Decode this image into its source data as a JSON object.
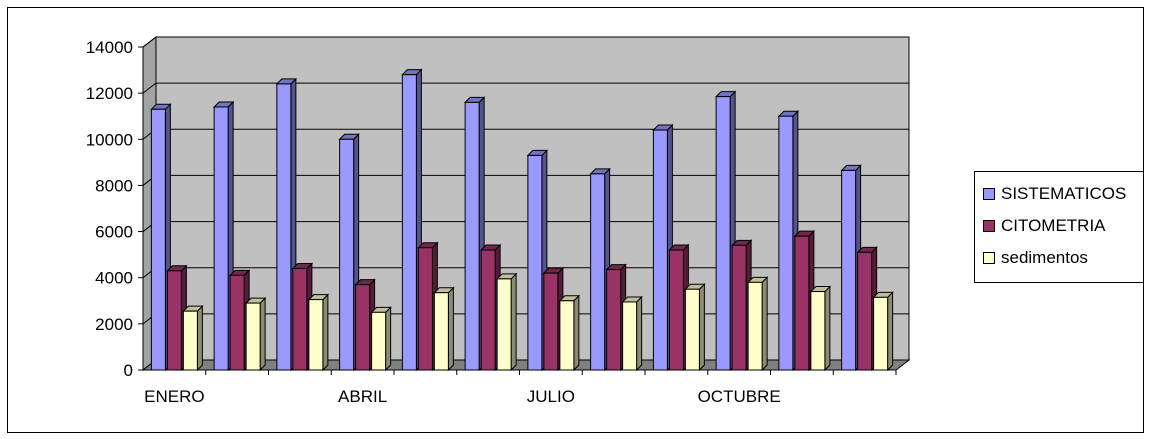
{
  "chart_data": {
    "type": "bar",
    "categories": [
      "ENERO",
      "",
      "",
      "ABRIL",
      "",
      "",
      "JULIO",
      "",
      "",
      "OCTUBRE",
      "",
      ""
    ],
    "series": [
      {
        "name": "SISTEMATICOS",
        "values": [
          11300,
          11400,
          12400,
          10000,
          12800,
          11600,
          9300,
          8500,
          10400,
          11850,
          11000,
          8650
        ],
        "color": "#9999ff"
      },
      {
        "name": "CITOMETRIA",
        "values": [
          4300,
          4100,
          4400,
          3700,
          5300,
          5200,
          4200,
          4350,
          5200,
          5400,
          5800,
          5100
        ],
        "color": "#993366"
      },
      {
        "name": "sedimentos",
        "values": [
          2550,
          2900,
          3050,
          2500,
          3350,
          3950,
          3000,
          2950,
          3500,
          3800,
          3400,
          3150
        ],
        "color": "#ffffcc"
      }
    ],
    "ylim": [
      0,
      14000
    ],
    "yticks": [
      "0",
      "2000",
      "4000",
      "6000",
      "8000",
      "10000",
      "12000",
      "14000"
    ],
    "grid": true,
    "legend_position": "right",
    "colors": {
      "wall": "#c0c0c0",
      "floor": "#808080",
      "gridline": "#000000"
    }
  }
}
